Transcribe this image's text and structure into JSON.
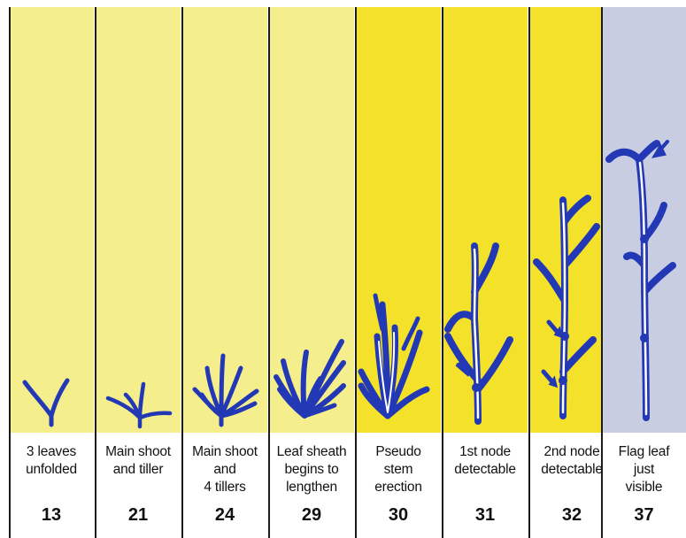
{
  "colors": {
    "pale_yellow": "#f5ee8c",
    "bright_yellow": "#f4e22a",
    "lavender": "#c8cde2",
    "plant_blue": "#2238b5",
    "divider": "#1a1a1a"
  },
  "stages": [
    {
      "code": "13",
      "description": "3 leaves\nunfolded",
      "background": "pale_yellow",
      "plant": "three-leaves-plant-icon"
    },
    {
      "code": "21",
      "description": "Main shoot\nand tiller",
      "background": "pale_yellow",
      "plant": "main-shoot-tiller-plant-icon"
    },
    {
      "code": "24",
      "description": "Main shoot\nand\n4 tillers",
      "background": "pale_yellow",
      "plant": "four-tillers-plant-icon"
    },
    {
      "code": "29",
      "description": "Leaf sheath\nbegins to\nlengthen",
      "background": "pale_yellow",
      "plant": "leaf-sheath-plant-icon"
    },
    {
      "code": "30",
      "description": "Pseudo\nstem\nerection",
      "background": "bright_yellow",
      "plant": "pseudo-stem-plant-icon"
    },
    {
      "code": "31",
      "description": "1st node\ndetectable",
      "background": "bright_yellow",
      "plant": "first-node-plant-icon"
    },
    {
      "code": "32",
      "description": "2nd node\ndetectable",
      "background": "bright_yellow",
      "plant": "second-node-plant-icon"
    },
    {
      "code": "37",
      "description": "Flag leaf\njust\nvisible",
      "background": "lavender",
      "plant": "flag-leaf-plant-icon"
    }
  ]
}
